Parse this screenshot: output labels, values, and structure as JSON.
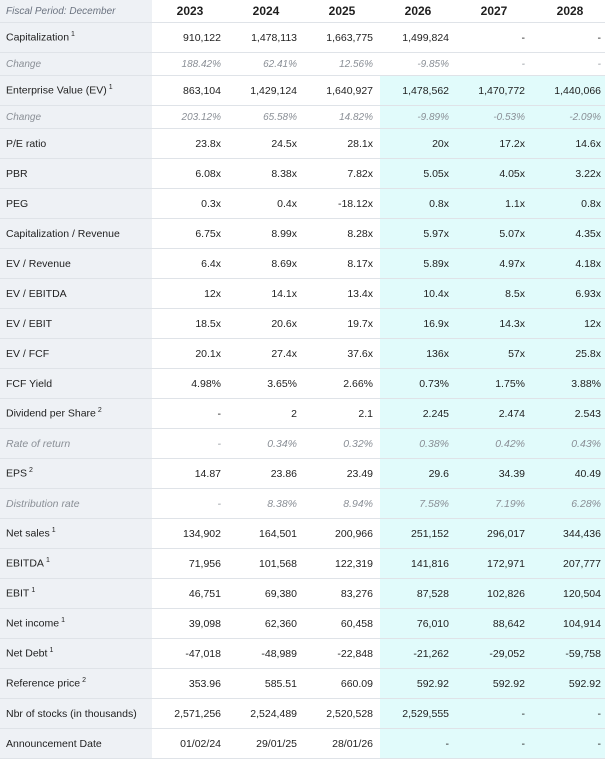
{
  "header": {
    "label": "Fiscal Period: December",
    "years": [
      "2023",
      "2024",
      "2025",
      "2026",
      "2027",
      "2028"
    ]
  },
  "rows": [
    {
      "label": "Capitalization",
      "sup": "1",
      "type": "main",
      "values": [
        "910,122",
        "1,478,113",
        "1,663,775",
        "1,499,824",
        "-",
        "-"
      ]
    },
    {
      "label": "Change",
      "sup": "",
      "type": "sub",
      "values": [
        "188.42%",
        "62.41%",
        "12.56%",
        "-9.85%",
        "-",
        "-"
      ]
    },
    {
      "label": "Enterprise Value (EV)",
      "sup": "1",
      "type": "main",
      "values": [
        "863,104",
        "1,429,124",
        "1,640,927",
        "1,478,562",
        "1,470,772",
        "1,440,066"
      ]
    },
    {
      "label": "Change",
      "sup": "",
      "type": "sub",
      "values": [
        "203.12%",
        "65.58%",
        "14.82%",
        "-9.89%",
        "-0.53%",
        "-2.09%"
      ]
    },
    {
      "label": "P/E ratio",
      "sup": "",
      "type": "main",
      "values": [
        "23.8x",
        "24.5x",
        "28.1x",
        "20x",
        "17.2x",
        "14.6x"
      ]
    },
    {
      "label": "PBR",
      "sup": "",
      "type": "main",
      "values": [
        "6.08x",
        "8.38x",
        "7.82x",
        "5.05x",
        "4.05x",
        "3.22x"
      ]
    },
    {
      "label": "PEG",
      "sup": "",
      "type": "main",
      "values": [
        "0.3x",
        "0.4x",
        "-18.12x",
        "0.8x",
        "1.1x",
        "0.8x"
      ]
    },
    {
      "label": "Capitalization / Revenue",
      "sup": "",
      "type": "main",
      "values": [
        "6.75x",
        "8.99x",
        "8.28x",
        "5.97x",
        "5.07x",
        "4.35x"
      ]
    },
    {
      "label": "EV / Revenue",
      "sup": "",
      "type": "main",
      "values": [
        "6.4x",
        "8.69x",
        "8.17x",
        "5.89x",
        "4.97x",
        "4.18x"
      ]
    },
    {
      "label": "EV / EBITDA",
      "sup": "",
      "type": "main",
      "values": [
        "12x",
        "14.1x",
        "13.4x",
        "10.4x",
        "8.5x",
        "6.93x"
      ]
    },
    {
      "label": "EV / EBIT",
      "sup": "",
      "type": "main",
      "values": [
        "18.5x",
        "20.6x",
        "19.7x",
        "16.9x",
        "14.3x",
        "12x"
      ]
    },
    {
      "label": "EV / FCF",
      "sup": "",
      "type": "main",
      "values": [
        "20.1x",
        "27.4x",
        "37.6x",
        "136x",
        "57x",
        "25.8x"
      ]
    },
    {
      "label": "FCF Yield",
      "sup": "",
      "type": "main",
      "values": [
        "4.98%",
        "3.65%",
        "2.66%",
        "0.73%",
        "1.75%",
        "3.88%"
      ]
    },
    {
      "label": "Dividend per Share",
      "sup": "2",
      "type": "main",
      "values": [
        "-",
        "2",
        "2.1",
        "2.245",
        "2.474",
        "2.543"
      ]
    },
    {
      "label": "Rate of return",
      "sup": "",
      "type": "italic",
      "values": [
        "-",
        "0.34%",
        "0.32%",
        "0.38%",
        "0.42%",
        "0.43%"
      ]
    },
    {
      "label": "EPS",
      "sup": "2",
      "type": "main",
      "values": [
        "14.87",
        "23.86",
        "23.49",
        "29.6",
        "34.39",
        "40.49"
      ]
    },
    {
      "label": "Distribution rate",
      "sup": "",
      "type": "italic",
      "values": [
        "-",
        "8.38%",
        "8.94%",
        "7.58%",
        "7.19%",
        "6.28%"
      ]
    },
    {
      "label": "Net sales",
      "sup": "1",
      "type": "main",
      "values": [
        "134,902",
        "164,501",
        "200,966",
        "251,152",
        "296,017",
        "344,436"
      ]
    },
    {
      "label": "EBITDA",
      "sup": "1",
      "type": "main",
      "values": [
        "71,956",
        "101,568",
        "122,319",
        "141,816",
        "172,971",
        "207,777"
      ]
    },
    {
      "label": "EBIT",
      "sup": "1",
      "type": "main",
      "values": [
        "46,751",
        "69,380",
        "83,276",
        "87,528",
        "102,826",
        "120,504"
      ]
    },
    {
      "label": "Net income",
      "sup": "1",
      "type": "main",
      "values": [
        "39,098",
        "62,360",
        "60,458",
        "76,010",
        "88,642",
        "104,914"
      ]
    },
    {
      "label": "Net Debt",
      "sup": "1",
      "type": "main",
      "values": [
        "-47,018",
        "-48,989",
        "-22,848",
        "-21,262",
        "-29,052",
        "-59,758"
      ]
    },
    {
      "label": "Reference price",
      "sup": "2",
      "type": "main",
      "values": [
        "353.96",
        "585.51",
        "660.09",
        "592.92",
        "592.92",
        "592.92"
      ]
    },
    {
      "label": "Nbr of stocks (in thousands)",
      "sup": "",
      "type": "main",
      "values": [
        "2,571,256",
        "2,524,489",
        "2,520,528",
        "2,529,555",
        "-",
        "-"
      ]
    },
    {
      "label": "Announcement Date",
      "sup": "",
      "type": "main",
      "values": [
        "01/02/24",
        "29/01/25",
        "28/01/26",
        "-",
        "-",
        "-"
      ]
    }
  ],
  "colors": {
    "label_bg": "#eef1f5",
    "forecast_bg": "#e1fbfb",
    "border": "#dfe3e8"
  }
}
